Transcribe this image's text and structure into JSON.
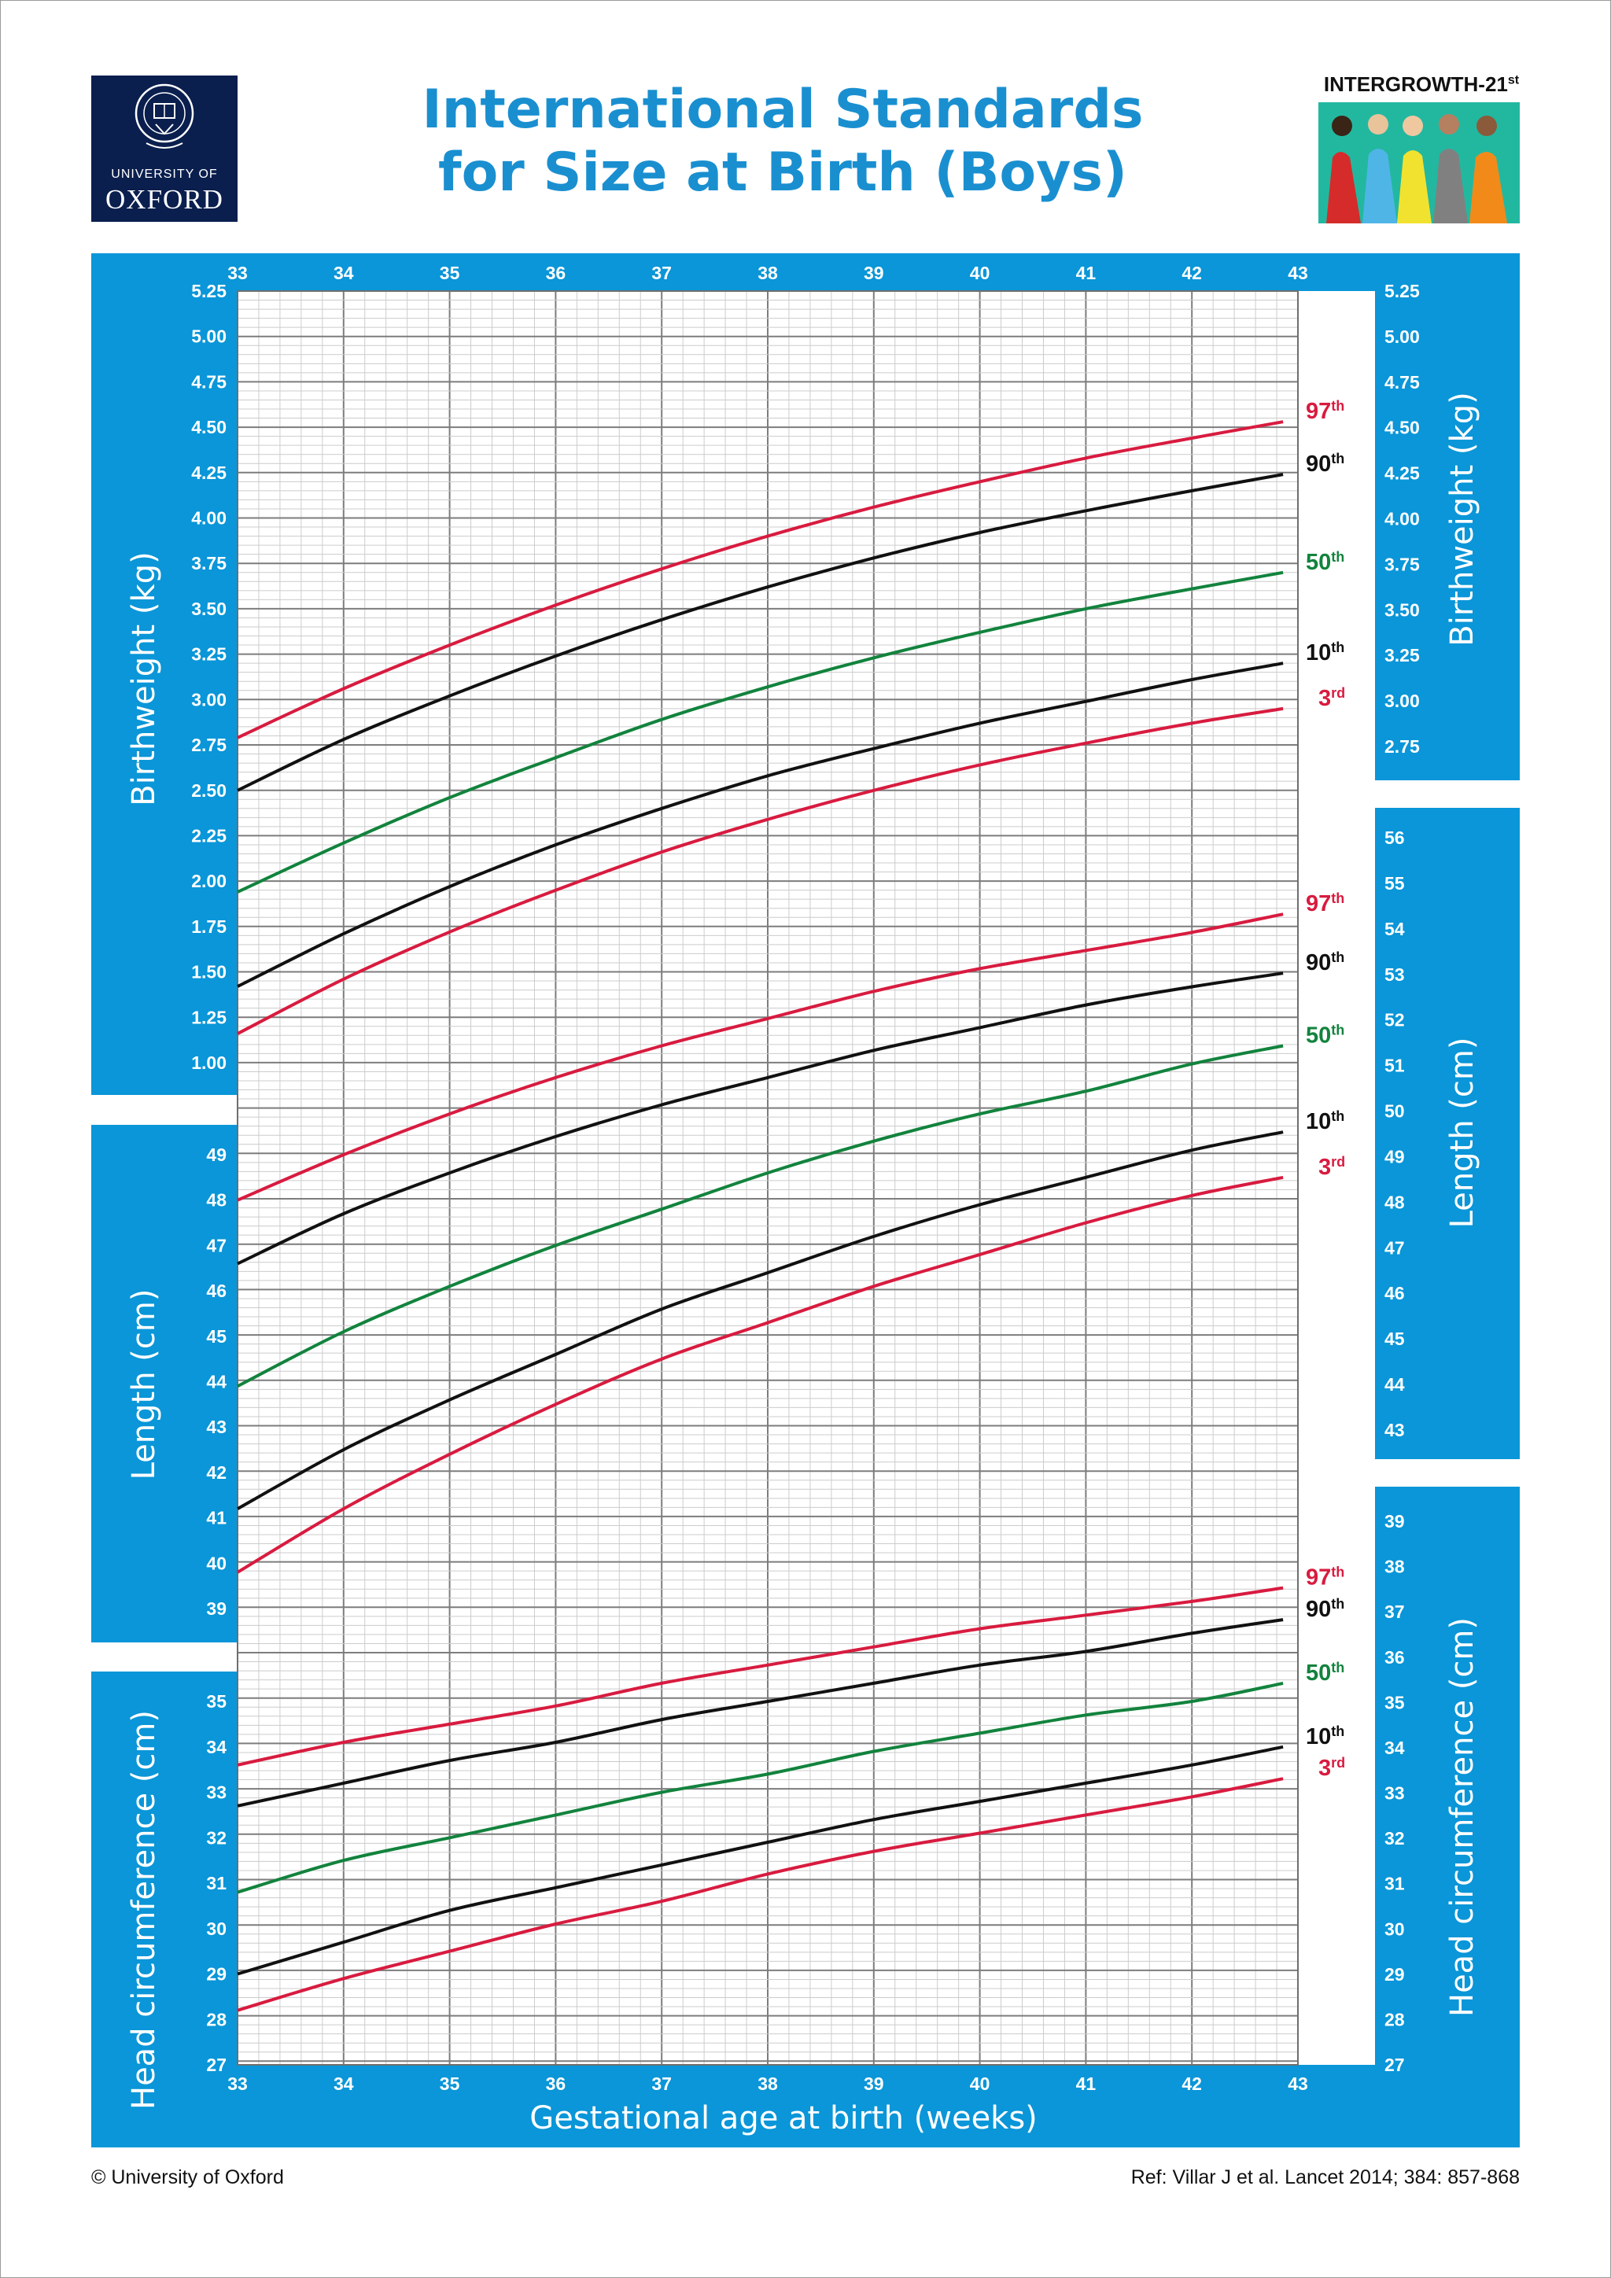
{
  "header": {
    "title_line1": "International Standards",
    "title_line2": "for Size at Birth (Boys)",
    "oxford_line1": "UNIVERSITY OF",
    "oxford_line2": "OXFORD",
    "intergrowth": "INTERGROWTH-21",
    "intergrowth_sup": "st"
  },
  "footer": {
    "copyright": "© University of Oxford",
    "reference": "Ref: Villar J et al. Lancet 2014; 384: 857-868"
  },
  "colors": {
    "panel": "#0a96d8",
    "red": "#d81b3f",
    "black": "#111111",
    "green": "#12833d",
    "title": "#1a8fd0"
  },
  "chart_data": [
    {
      "type": "line",
      "title": "Birthweight (kg)",
      "xlabel": "Gestational age at birth (weeks)",
      "ylabel": "Birthweight (kg)",
      "xlim": [
        33,
        43
      ],
      "ylim": [
        1.0,
        5.25
      ],
      "x": [
        33,
        34,
        35,
        36,
        37,
        38,
        39,
        40,
        41,
        42,
        42.86
      ],
      "left_ticks": [
        "1.00",
        "1.25",
        "1.50",
        "1.75",
        "2.00",
        "2.25",
        "2.50",
        "2.75",
        "3.00",
        "3.25",
        "3.50",
        "3.75",
        "4.00",
        "4.25",
        "4.50",
        "4.75",
        "5.00",
        "5.25"
      ],
      "right_ticks": [
        "2.75",
        "3.00",
        "3.25",
        "3.50",
        "3.75",
        "4.00",
        "4.25",
        "4.50",
        "4.75",
        "5.00",
        "5.25"
      ],
      "series": [
        {
          "name": "97th",
          "label": "97",
          "sup": "th",
          "color": "#d81b3f",
          "values": [
            2.79,
            3.06,
            3.3,
            3.52,
            3.72,
            3.9,
            4.06,
            4.2,
            4.33,
            4.44,
            4.53
          ]
        },
        {
          "name": "90th",
          "label": "90",
          "sup": "th",
          "color": "#111111",
          "values": [
            2.5,
            2.78,
            3.02,
            3.24,
            3.44,
            3.62,
            3.78,
            3.92,
            4.04,
            4.15,
            4.24
          ]
        },
        {
          "name": "50th",
          "label": "50",
          "sup": "th",
          "color": "#12833d",
          "values": [
            1.94,
            2.21,
            2.46,
            2.68,
            2.89,
            3.07,
            3.23,
            3.37,
            3.5,
            3.61,
            3.7
          ]
        },
        {
          "name": "10th",
          "label": "10",
          "sup": "th",
          "color": "#111111",
          "values": [
            1.42,
            1.71,
            1.97,
            2.2,
            2.4,
            2.58,
            2.73,
            2.87,
            2.99,
            3.11,
            3.2
          ]
        },
        {
          "name": "3rd",
          "label": "3",
          "sup": "rd",
          "color": "#d81b3f",
          "values": [
            1.16,
            1.46,
            1.72,
            1.95,
            2.16,
            2.34,
            2.5,
            2.64,
            2.76,
            2.87,
            2.95
          ]
        }
      ]
    },
    {
      "type": "line",
      "title": "Length (cm)",
      "xlabel": "Gestational age at birth (weeks)",
      "ylabel": "Length (cm)",
      "xlim": [
        33,
        43
      ],
      "ylim": [
        39,
        56
      ],
      "x": [
        33,
        34,
        35,
        36,
        37,
        38,
        39,
        40,
        41,
        42,
        42.86
      ],
      "left_ticks": [
        "39",
        "40",
        "41",
        "42",
        "43",
        "44",
        "45",
        "46",
        "47",
        "48",
        "49"
      ],
      "right_ticks": [
        "43",
        "44",
        "45",
        "46",
        "47",
        "48",
        "49",
        "50",
        "51",
        "52",
        "53",
        "54",
        "55",
        "56"
      ],
      "series": [
        {
          "name": "97th",
          "label": "97",
          "sup": "th",
          "color": "#d81b3f",
          "values": [
            48.0,
            49.0,
            49.9,
            50.7,
            51.4,
            52.0,
            52.6,
            53.1,
            53.5,
            53.9,
            54.3
          ]
        },
        {
          "name": "90th",
          "label": "90",
          "sup": "th",
          "color": "#111111",
          "values": [
            46.6,
            47.7,
            48.6,
            49.4,
            50.1,
            50.7,
            51.3,
            51.8,
            52.3,
            52.7,
            53.0
          ]
        },
        {
          "name": "50th",
          "label": "50",
          "sup": "th",
          "color": "#12833d",
          "values": [
            43.9,
            45.1,
            46.1,
            47.0,
            47.8,
            48.6,
            49.3,
            49.9,
            50.4,
            51.0,
            51.4
          ]
        },
        {
          "name": "10th",
          "label": "10",
          "sup": "th",
          "color": "#111111",
          "values": [
            41.2,
            42.5,
            43.6,
            44.6,
            45.6,
            46.4,
            47.2,
            47.9,
            48.5,
            49.1,
            49.5
          ]
        },
        {
          "name": "3rd",
          "label": "3",
          "sup": "rd",
          "color": "#d81b3f",
          "values": [
            39.8,
            41.2,
            42.4,
            43.5,
            44.5,
            45.3,
            46.1,
            46.8,
            47.5,
            48.1,
            48.5
          ]
        }
      ]
    },
    {
      "type": "line",
      "title": "Head circumference (cm)",
      "xlabel": "Gestational age at birth (weeks)",
      "ylabel": "Head circumference (cm)",
      "xlim": [
        33,
        43
      ],
      "ylim": [
        27,
        39
      ],
      "x": [
        33,
        34,
        35,
        36,
        37,
        38,
        39,
        40,
        41,
        42,
        42.86
      ],
      "left_ticks": [
        "27",
        "28",
        "29",
        "30",
        "31",
        "32",
        "33",
        "34",
        "35"
      ],
      "right_ticks": [
        "27",
        "28",
        "29",
        "30",
        "31",
        "32",
        "33",
        "34",
        "35",
        "36",
        "37",
        "38",
        "39"
      ],
      "series": [
        {
          "name": "97th",
          "label": "97",
          "sup": "th",
          "color": "#d81b3f",
          "values": [
            33.6,
            34.1,
            34.5,
            34.9,
            35.4,
            35.8,
            36.2,
            36.6,
            36.9,
            37.2,
            37.5
          ]
        },
        {
          "name": "90th",
          "label": "90",
          "sup": "th",
          "color": "#111111",
          "values": [
            32.7,
            33.2,
            33.7,
            34.1,
            34.6,
            35.0,
            35.4,
            35.8,
            36.1,
            36.5,
            36.8
          ]
        },
        {
          "name": "50th",
          "label": "50",
          "sup": "th",
          "color": "#12833d",
          "values": [
            30.8,
            31.5,
            32.0,
            32.5,
            33.0,
            33.4,
            33.9,
            34.3,
            34.7,
            35.0,
            35.4
          ]
        },
        {
          "name": "10th",
          "label": "10",
          "sup": "th",
          "color": "#111111",
          "values": [
            29.0,
            29.7,
            30.4,
            30.9,
            31.4,
            31.9,
            32.4,
            32.8,
            33.2,
            33.6,
            34.0
          ]
        },
        {
          "name": "3rd",
          "label": "3",
          "sup": "rd",
          "color": "#d81b3f",
          "values": [
            28.2,
            28.9,
            29.5,
            30.1,
            30.6,
            31.2,
            31.7,
            32.1,
            32.5,
            32.9,
            33.3
          ]
        }
      ]
    }
  ],
  "x_ticks": [
    "33",
    "34",
    "35",
    "36",
    "37",
    "38",
    "39",
    "40",
    "41",
    "42",
    "43"
  ],
  "x_axis_label": "Gestational age at birth (weeks)"
}
